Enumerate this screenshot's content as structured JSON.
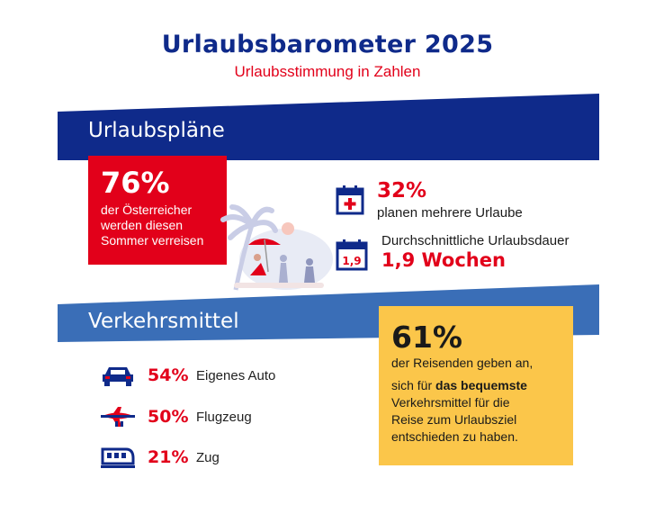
{
  "header": {
    "title": "Urlaubsbarometer  2025",
    "subtitle": "Urlaubsstimmung in Zahlen"
  },
  "colors": {
    "navy": "#0f2a8a",
    "blue_band": "#3a6eb7",
    "red": "#e2001a",
    "yellow": "#fbc64a"
  },
  "plans": {
    "heading": "Urlaubspläne",
    "headline_stat": {
      "value": "76%",
      "lines": [
        "der Österreicher",
        "werden diesen",
        "Sommer verreisen"
      ]
    },
    "stats": [
      {
        "icon": "calendar-plus-icon",
        "value": "32%",
        "text": "planen mehrere Urlaube"
      },
      {
        "icon": "calendar-duration-icon",
        "icon_text": "1,9",
        "label": "Durchschnittliche Urlaubsdauer",
        "value": "1,9 Wochen"
      }
    ]
  },
  "transport": {
    "heading": "Verkehrsmittel",
    "items": [
      {
        "icon": "car-icon",
        "value": "54%",
        "label": "Eigenes Auto"
      },
      {
        "icon": "airplane-icon",
        "value": "50%",
        "label": "Flugzeug"
      },
      {
        "icon": "train-icon",
        "value": "21%",
        "label": "Zug"
      }
    ],
    "highlight": {
      "value": "61%",
      "line1": "der Reisenden geben an,",
      "line2_pre": "sich für ",
      "line2_bold": "das bequemste",
      "lines_rest": [
        "Verkehrsmittel für die",
        "Reise zum Urlaubsziel",
        "entschieden zu haben."
      ]
    }
  }
}
